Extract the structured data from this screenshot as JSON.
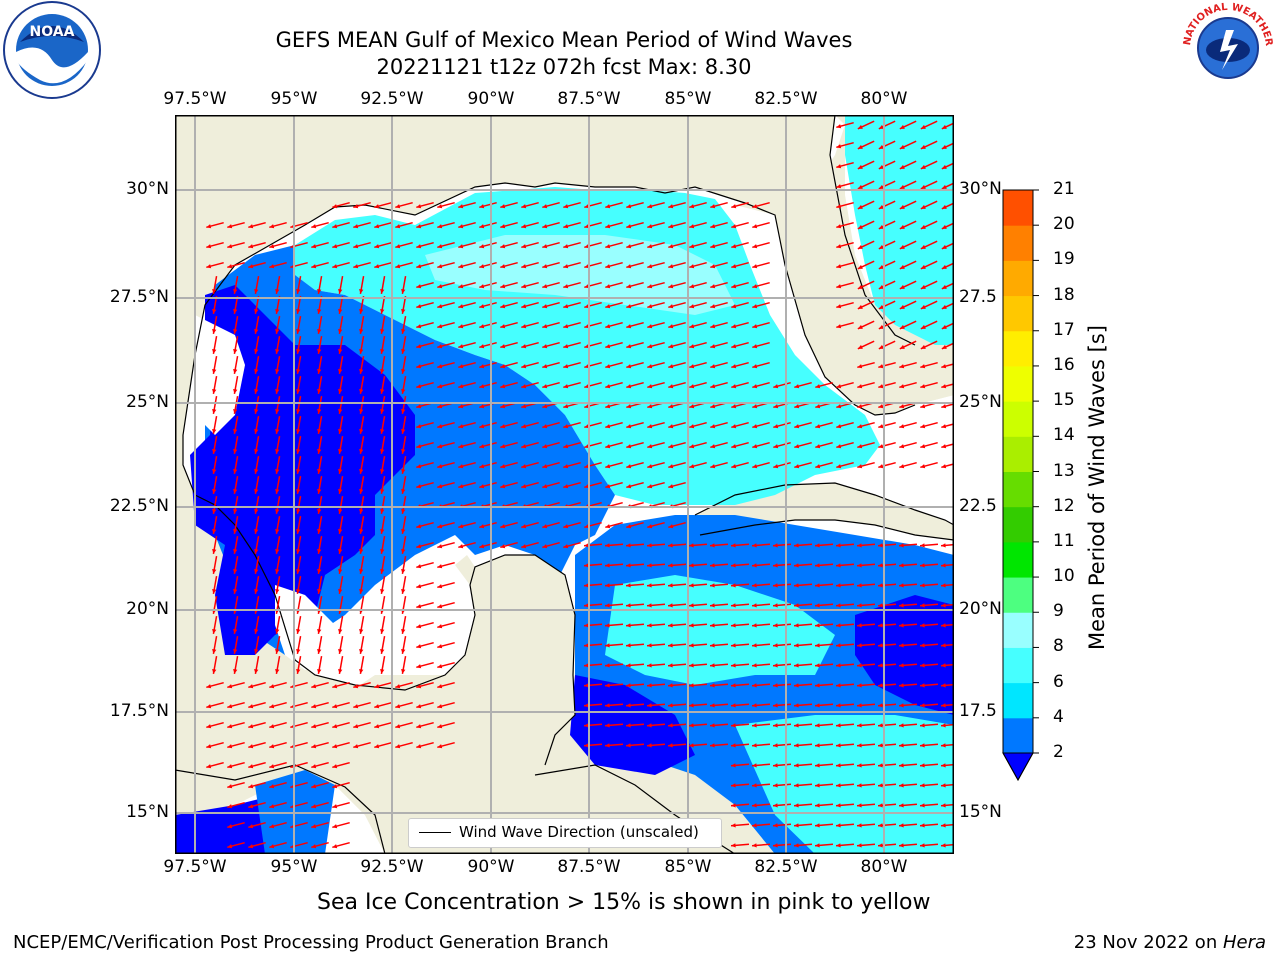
{
  "title": {
    "line1": "GEFS MEAN Gulf of Mexico Mean Period of Wind Waves",
    "line2": "20221121 t12z 072h fcst   Max: 8.30"
  },
  "logos": {
    "noaa": {
      "text": "NOAA",
      "icon": "noaa-logo"
    },
    "nws": {
      "text": "NATIONAL WEATHER SERVICE",
      "icon": "nws-logo"
    }
  },
  "map": {
    "lon_ticks": [
      "97.5°W",
      "95°W",
      "92.5°W",
      "90°W",
      "87.5°W",
      "85°W",
      "82.5°W",
      "80°W"
    ],
    "lat_ticks_left": [
      "30°N",
      "27.5°N",
      "25°N",
      "22.5°N",
      "20°N",
      "17.5°N",
      "15°N"
    ],
    "lat_ticks_right": [
      "30°N",
      "27.5",
      "25°N",
      "22.5",
      "20°N",
      "17.5",
      "15°N"
    ],
    "colors": {
      "land": "#efeedb",
      "ocean_none": "#ffffff",
      "arrow": "#ff0000",
      "grid": "#b0b0b0"
    }
  },
  "legend": {
    "label": "Wind Wave Direction (unscaled)"
  },
  "colorbar": {
    "title": "Mean Period of Wind Waves [s]",
    "labels": [
      "2",
      "4",
      "6",
      "8",
      "9",
      "10",
      "11",
      "12",
      "13",
      "14",
      "15",
      "16",
      "17",
      "18",
      "19",
      "20",
      "21"
    ],
    "colors": [
      "#0078ff",
      "#00e6ff",
      "#46ffff",
      "#99ffff",
      "#4dff80",
      "#00e600",
      "#33cc00",
      "#66dd00",
      "#aaee00",
      "#ccff00",
      "#eeff00",
      "#ffee00",
      "#ffc800",
      "#ffaa00",
      "#ff8000",
      "#ff5000",
      "#ff2d00",
      "#ff0000"
    ],
    "under_color": "#0000ff"
  },
  "notes": {
    "sea_ice": "Sea Ice Concentration > 15% is shown in pink to yellow"
  },
  "footer": {
    "left": "NCEP/EMC/Verification Post Processing Product Generation Branch",
    "right_prefix": "23 Nov 2022 on ",
    "right_italic": "Hera"
  }
}
